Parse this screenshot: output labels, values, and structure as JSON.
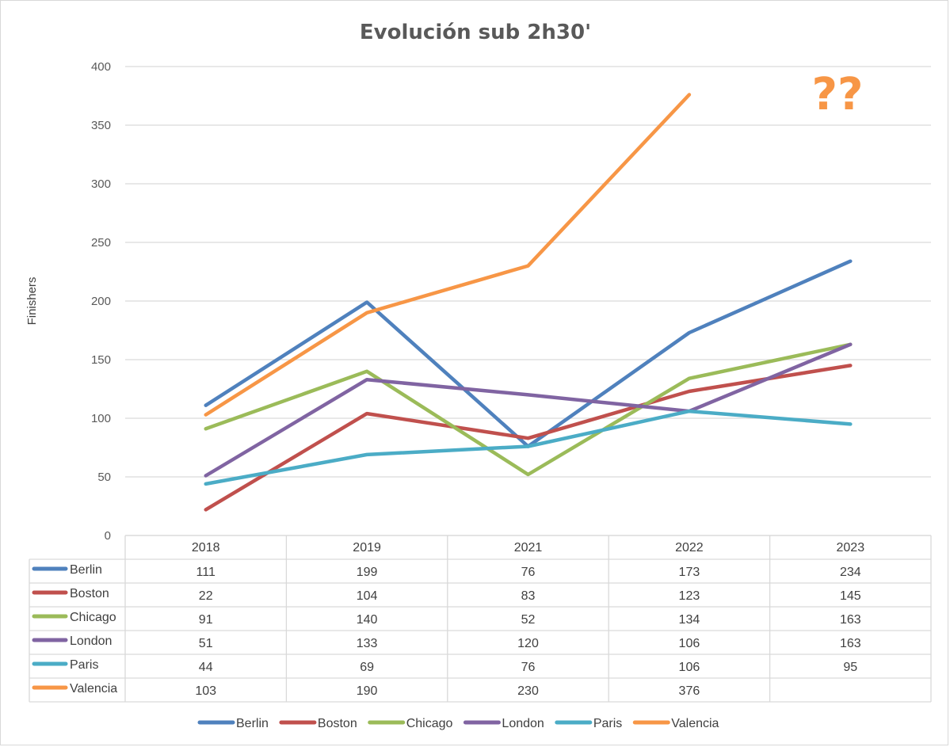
{
  "chart_data": {
    "type": "line",
    "title": "Evolución sub 2h30'",
    "xlabel": "",
    "ylabel": "Finishers",
    "ylim": [
      0,
      400
    ],
    "yticks": [
      0,
      50,
      100,
      150,
      200,
      250,
      300,
      350,
      400
    ],
    "categories": [
      "2018",
      "2019",
      "2021",
      "2022",
      "2023"
    ],
    "series": [
      {
        "name": "Berlin",
        "color": "#4f81bd",
        "values": [
          111,
          199,
          76,
          173,
          234
        ]
      },
      {
        "name": "Boston",
        "color": "#c0504d",
        "values": [
          22,
          104,
          83,
          123,
          145
        ]
      },
      {
        "name": "Chicago",
        "color": "#9bbb59",
        "values": [
          91,
          140,
          52,
          134,
          163
        ]
      },
      {
        "name": "London",
        "color": "#8064a2",
        "values": [
          51,
          133,
          120,
          106,
          163
        ]
      },
      {
        "name": "Paris",
        "color": "#4bacc6",
        "values": [
          44,
          69,
          76,
          106,
          95
        ]
      },
      {
        "name": "Valencia",
        "color": "#f79646",
        "values": [
          103,
          190,
          230,
          376,
          null
        ]
      }
    ],
    "annotation": {
      "text": "??",
      "color": "#f79646"
    },
    "legend": "bottom",
    "grid": true,
    "data_table": true
  }
}
